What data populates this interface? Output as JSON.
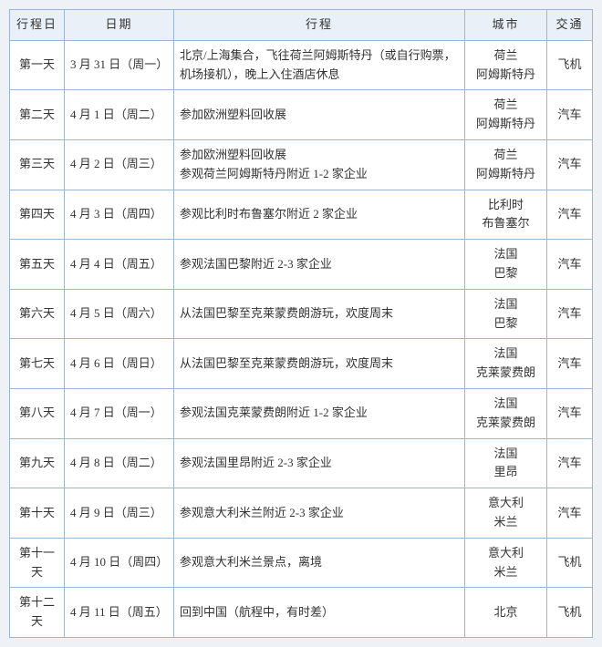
{
  "headers": {
    "day": "行程日",
    "date": "日期",
    "plan": "行程",
    "city": "城市",
    "transport": "交通"
  },
  "rows": [
    {
      "day": "第一天",
      "date": "3 月 31 日（周一）",
      "plan": "北京/上海集合，飞往荷兰阿姆斯特丹（或自行购票，机场接机），晚上入住酒店休息",
      "city": "荷兰\n阿姆斯特丹",
      "transport": "飞机"
    },
    {
      "day": "第二天",
      "date": "4 月 1 日（周二）",
      "plan": "参加欧洲塑料回收展",
      "city": "荷兰\n阿姆斯特丹",
      "transport": "汽车"
    },
    {
      "day": "第三天",
      "date": "4 月 2 日（周三）",
      "plan": "参加欧洲塑料回收展\n参观荷兰阿姆斯特丹附近 1-2 家企业",
      "city": "荷兰\n阿姆斯特丹",
      "transport": "汽车"
    },
    {
      "day": "第四天",
      "date": "4 月 3 日（周四）",
      "plan": "参观比利时布鲁塞尔附近 2 家企业",
      "city": "比利时\n布鲁塞尔",
      "transport": "汽车"
    },
    {
      "day": "第五天",
      "date": "4 月 4 日（周五）",
      "plan": "参观法国巴黎附近 2-3 家企业",
      "city": "法国\n巴黎",
      "transport": "汽车"
    },
    {
      "day": "第六天",
      "date": "4 月 5 日（周六）",
      "plan": "从法国巴黎至克莱蒙费朗游玩，欢度周末",
      "city": "法国\n巴黎",
      "transport": "汽车"
    },
    {
      "day": "第七天",
      "date": "4 月 6 日（周日）",
      "plan": "从法国巴黎至克莱蒙费朗游玩，欢度周末",
      "city": "法国\n克莱蒙费朗",
      "transport": "汽车"
    },
    {
      "day": "第八天",
      "date": "4 月 7 日（周一）",
      "plan": "参观法国克莱蒙费朗附近 1-2 家企业",
      "city": "法国\n克莱蒙费朗",
      "transport": "汽车"
    },
    {
      "day": "第九天",
      "date": "4 月 8 日（周二）",
      "plan": "参观法国里昂附近 2-3 家企业",
      "city": "法国\n里昂",
      "transport": "汽车"
    },
    {
      "day": "第十天",
      "date": "4 月 9 日（周三）",
      "plan": "参观意大利米兰附近 2-3 家企业",
      "city": "意大利\n米兰",
      "transport": "汽车"
    },
    {
      "day": "第十一天",
      "date": "4 月 10 日（周四）",
      "plan": "参观意大利米兰景点，离境",
      "city": "意大利\n米兰",
      "transport": "飞机"
    },
    {
      "day": "第十二天",
      "date": "4 月 11 日（周五）",
      "plan": "回到中国（航程中，有时差）",
      "city": "北京",
      "transport": "飞机"
    }
  ]
}
